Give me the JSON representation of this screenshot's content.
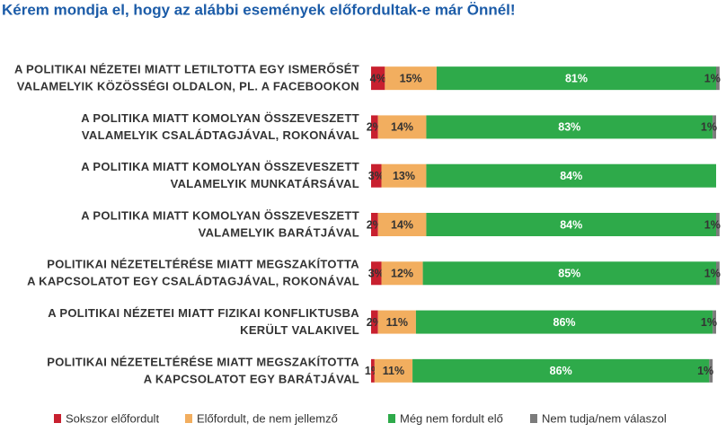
{
  "chart_data": {
    "type": "stacked-bar-horizontal",
    "title": "Kérem mondja el, hogy az alábbi események előfordultak-e már Önnél!",
    "categories": [
      [
        "A POLITIKAI NÉZETEI MIATT LETILTOTTA EGY ISMERŐSÉT",
        "VALAMELYIK KÖZÖSSÉGI OLDALON, PL. A FACEBOOKON"
      ],
      [
        "A POLITIKA MIATT KOMOLYAN ÖSSZEVESZETT",
        "VALAMELYIK CSALÁDTAGJÁVAL, ROKONÁVAL"
      ],
      [
        "A POLITIKA MIATT KOMOLYAN ÖSSZEVESZETT",
        "VALAMELYIK MUNKATÁRSÁVAL"
      ],
      [
        "A POLITIKA MIATT KOMOLYAN ÖSSZEVESZETT",
        "VALAMELYIK BARÁTJÁVAL"
      ],
      [
        "POLITIKAI NÉZETELTÉRÉSE MIATT MEGSZAKÍTOTTA",
        "A KAPCSOLATOT EGY CSALÁDTAGJÁVAL, ROKONÁVAL"
      ],
      [
        "A POLITIKAI NÉZETEI MIATT FIZIKAI KONFLIKTUSBA",
        "KERÜLT VALAKIVEL"
      ],
      [
        "POLITIKAI NÉZETELTÉRÉSE MIATT MEGSZAKÍTOTTA",
        "A KAPCSOLATOT EGY BARÁTJÁVAL"
      ]
    ],
    "series": [
      {
        "name": "Sokszor előfordult",
        "color": "#c8202f",
        "values": [
          4,
          2,
          3,
          2,
          3,
          2,
          1
        ],
        "value_labels": [
          "4%",
          "2%",
          "3%",
          "2%",
          "3%",
          "2%",
          "1%"
        ]
      },
      {
        "name": "Előfordult, de nem jellemző",
        "color": "#f2ae5f",
        "values": [
          15,
          14,
          13,
          14,
          12,
          11,
          11
        ],
        "value_labels": [
          "15%",
          "14%",
          "13%",
          "14%",
          "12%",
          "11%",
          "11%"
        ]
      },
      {
        "name": "Még nem fordult elő",
        "color": "#2eaa4a",
        "values": [
          81,
          83,
          84,
          84,
          85,
          86,
          86
        ],
        "value_labels": [
          "81%",
          "83%",
          "84%",
          "84%",
          "85%",
          "86%",
          "86%"
        ]
      },
      {
        "name": "Nem tudja/nem válaszol",
        "color": "#7b7b7b",
        "values": [
          1,
          1,
          null,
          1,
          1,
          1,
          1
        ],
        "value_labels": [
          "1%",
          "1%",
          null,
          "1%",
          "1%",
          "1%",
          "1%"
        ]
      }
    ],
    "xlim": [
      0,
      100
    ]
  }
}
